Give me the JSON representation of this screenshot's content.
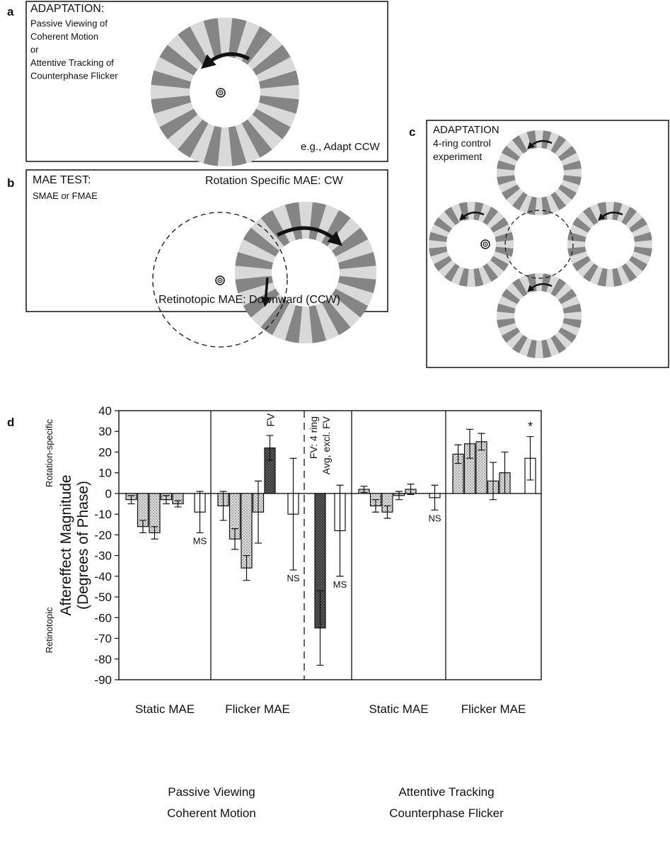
{
  "panels": {
    "a": {
      "letter": "a",
      "lines": [
        "ADAPTATION:",
        "Passive Viewing of",
        "Coherent Motion",
        "or",
        "Attentive Tracking of",
        "Counterphase Flicker"
      ],
      "note": "e.g., Adapt CCW"
    },
    "b": {
      "letter": "b",
      "lines": [
        "MAE TEST:",
        "SMAE or FMAE"
      ],
      "rotation_label": "Rotation Specific MAE: CW",
      "retinotopic_label": "Retinotopic MAE: Downward (CCW)"
    },
    "c": {
      "letter": "c",
      "lines": [
        "ADAPTATION",
        "4-ring control",
        "experiment"
      ]
    },
    "d": {
      "letter": "d"
    }
  },
  "chart_data": {
    "type": "bar",
    "y_label": [
      "Aftereffect Magnitude",
      "(Degrees of Phase)"
    ],
    "y_side_labels": {
      "top": "Rotation-specific",
      "bottom": "Retinotopic"
    },
    "ylim": [
      -90,
      40
    ],
    "yticks": [
      40,
      30,
      20,
      10,
      0,
      -10,
      -20,
      -30,
      -40,
      -50,
      -60,
      -70,
      -80,
      -90
    ],
    "groups": [
      {
        "label": "Static MAE",
        "note": "MS",
        "bars": [
          {
            "value": -3,
            "error": 2,
            "fill": "dotted"
          },
          {
            "value": -16,
            "error": 3,
            "fill": "dotted"
          },
          {
            "value": -19,
            "error": 3,
            "fill": "dotted"
          },
          {
            "value": -3,
            "error": 2,
            "fill": "dotted"
          },
          {
            "value": -5,
            "error": 1.5,
            "fill": "dotted"
          },
          {
            "value": -9,
            "error": 10,
            "fill": "open"
          }
        ]
      },
      {
        "label": "Flicker MAE",
        "note": "NS",
        "annotation": [
          "FV"
        ],
        "bars": [
          {
            "value": -6,
            "error": 7,
            "fill": "dotted"
          },
          {
            "value": -22,
            "error": 5,
            "fill": "dotted"
          },
          {
            "value": -36,
            "error": 6,
            "fill": "dotted"
          },
          {
            "value": -9,
            "error": 15,
            "fill": "dotted"
          },
          {
            "value": 22,
            "error": 6,
            "fill": "dark"
          },
          {
            "value": -10,
            "error": 27,
            "fill": "open"
          }
        ]
      },
      {
        "label": null,
        "note": "MS",
        "annotation": [
          "FV: 4 ring",
          "Avg, excl. FV"
        ],
        "bars": [
          {
            "value": -65,
            "error": 18,
            "fill": "dark"
          },
          {
            "value": -18,
            "error": 22,
            "fill": "open"
          }
        ]
      },
      {
        "label": "Static MAE",
        "note": "NS",
        "bars": [
          {
            "value": 2,
            "error": 1.5,
            "fill": "dotted"
          },
          {
            "value": -6,
            "error": 3,
            "fill": "dotted"
          },
          {
            "value": -9,
            "error": 3,
            "fill": "dotted"
          },
          {
            "value": -1,
            "error": 2,
            "fill": "dotted"
          },
          {
            "value": 2,
            "error": 2.5,
            "fill": "dotted"
          },
          {
            "value": -2,
            "error": 6,
            "fill": "open"
          }
        ]
      },
      {
        "label": "Flicker MAE",
        "note": "*",
        "bars": [
          {
            "value": 19,
            "error": 4.5,
            "fill": "dotted"
          },
          {
            "value": 24,
            "error": 7,
            "fill": "dotted"
          },
          {
            "value": 25,
            "error": 4,
            "fill": "dotted"
          },
          {
            "value": 6,
            "error": 9,
            "fill": "dotted"
          },
          {
            "value": 10,
            "error": 10,
            "fill": "dotted"
          },
          {
            "value": 17,
            "error": 10.5,
            "fill": "open"
          }
        ]
      }
    ],
    "supergroups": [
      {
        "label": [
          "Passive Viewing",
          "Coherent Motion"
        ]
      },
      {
        "label": [
          "Attentive Tracking",
          "Counterphase Flicker"
        ]
      }
    ]
  }
}
